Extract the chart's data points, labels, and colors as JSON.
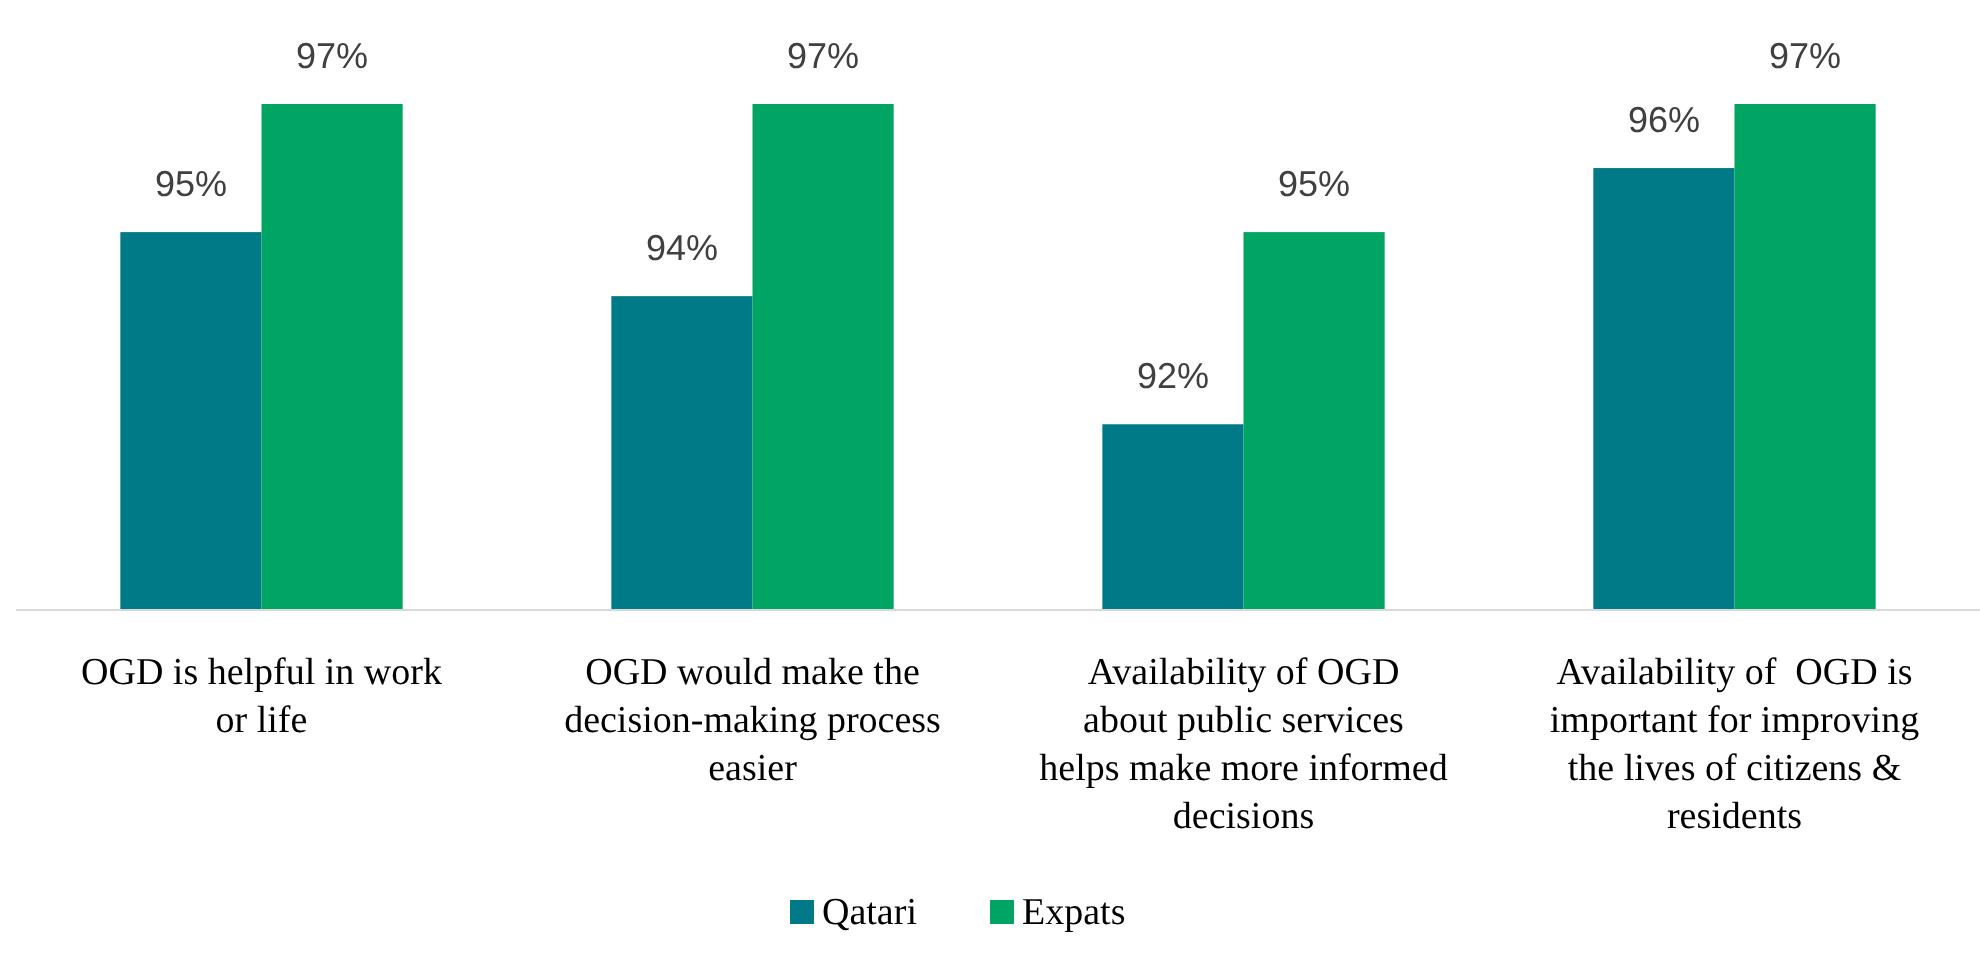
{
  "chart_data": {
    "type": "bar",
    "categories": [
      "OGD is helpful in work or life",
      "OGD would make the decision-making process easier",
      "Availability of OGD about public services helps make more informed decisions",
      "Availability of  OGD is important for improving the lives of citizens & residents"
    ],
    "series": [
      {
        "name": "Qatari",
        "color": "#007a87",
        "values": [
          95,
          94,
          92,
          96
        ],
        "value_labels": [
          "95%",
          "94%",
          "92%",
          "96%"
        ]
      },
      {
        "name": "Expats",
        "color": "#00a463",
        "values": [
          97,
          97,
          95,
          97
        ],
        "value_labels": [
          "97%",
          "97%",
          "95%",
          "97%"
        ]
      }
    ],
    "ylim": [
      89.1,
      97
    ],
    "legend": "bottom"
  }
}
